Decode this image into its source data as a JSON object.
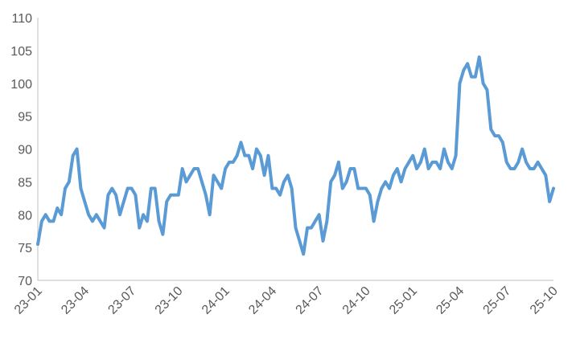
{
  "chart_data": {
    "type": "line",
    "categories": [
      "23-01",
      null,
      null,
      null,
      null,
      null,
      null,
      null,
      null,
      null,
      null,
      null,
      "23-04",
      null,
      null,
      null,
      null,
      null,
      null,
      null,
      null,
      null,
      null,
      null,
      "23-07",
      null,
      null,
      null,
      null,
      null,
      null,
      null,
      null,
      null,
      null,
      null,
      "23-10",
      null,
      null,
      null,
      null,
      null,
      null,
      null,
      null,
      null,
      null,
      null,
      "24-01",
      null,
      null,
      null,
      null,
      null,
      null,
      null,
      null,
      null,
      null,
      null,
      "24-04",
      null,
      null,
      null,
      null,
      null,
      null,
      null,
      null,
      null,
      null,
      null,
      "24-07",
      null,
      null,
      null,
      null,
      null,
      null,
      null,
      null,
      null,
      null,
      null,
      "24-10",
      null,
      null,
      null,
      null,
      null,
      null,
      null,
      null,
      null,
      null,
      null,
      "25-01",
      null,
      null,
      null,
      null,
      null,
      null,
      null,
      null,
      null,
      null,
      null,
      "25-04",
      null,
      null,
      null,
      null,
      null,
      null,
      null,
      null,
      null,
      null,
      null,
      "25-07",
      null,
      null,
      null,
      null,
      null,
      null,
      null,
      null,
      null,
      null,
      null,
      "25-10"
    ],
    "values": [
      75.5,
      79,
      80,
      79,
      79,
      81,
      80,
      84,
      85,
      89,
      90,
      84,
      82,
      80,
      79,
      80,
      79,
      78,
      83,
      84,
      83,
      80,
      82,
      84,
      84,
      83,
      78,
      80,
      79,
      84,
      84,
      79,
      77,
      82,
      83,
      83,
      83,
      87,
      85,
      86,
      87,
      87,
      85,
      83,
      80,
      86,
      85,
      84,
      87,
      88,
      88,
      89,
      91,
      89,
      89,
      87,
      90,
      89,
      86,
      89,
      84,
      84,
      83,
      85,
      86,
      84,
      78,
      76,
      74,
      78,
      78,
      79,
      80,
      76,
      79,
      85,
      86,
      88,
      84,
      85,
      87,
      87,
      84,
      84,
      84,
      83,
      79,
      82,
      84,
      85,
      84,
      86,
      87,
      85,
      87,
      88,
      89,
      87,
      88,
      90,
      87,
      88,
      88,
      87,
      90,
      88,
      87,
      89,
      100,
      102,
      103,
      101,
      101,
      104,
      100,
      99,
      93,
      92,
      92,
      91,
      88,
      87,
      87,
      88,
      90,
      88,
      87,
      87,
      88,
      87,
      86,
      82,
      84
    ],
    "color": "#5b9bd5",
    "ylim": [
      70,
      110
    ],
    "yticks": [
      70,
      75,
      80,
      85,
      90,
      95,
      100,
      105,
      110
    ],
    "grid": false
  }
}
